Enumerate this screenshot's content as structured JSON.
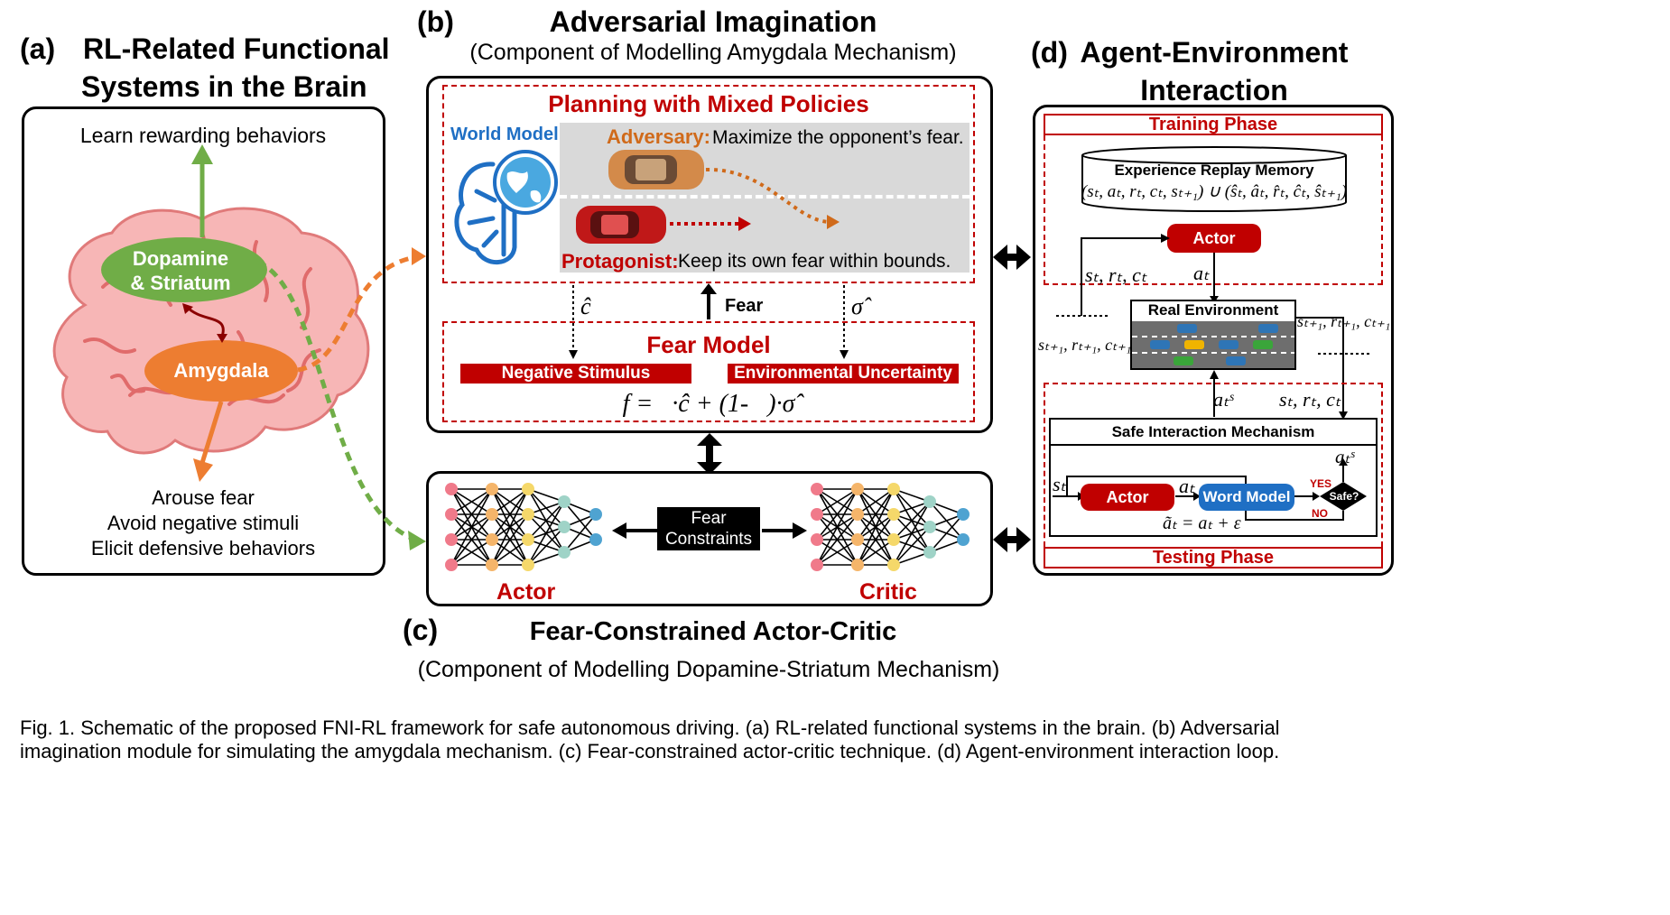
{
  "panel_a": {
    "label": "(a)",
    "title_line1": "RL-Related Functional",
    "title_line2": "Systems in the Brain",
    "learn": "Learn rewarding behaviors",
    "dopamine_line1": "Dopamine",
    "dopamine_line2": "& Striatum",
    "amygdala": "Amygdala",
    "arouse_1": "Arouse fear",
    "arouse_2": "Avoid negative stimuli",
    "arouse_3": "Elicit defensive behaviors"
  },
  "panel_b": {
    "label": "(b)",
    "title": "Adversarial Imagination",
    "subtitle": "(Component of Modelling Amygdala Mechanism)",
    "planning": "Planning with Mixed Policies",
    "world_model": "World Model",
    "adversary_label": "Adversary:",
    "adversary_text": "Maximize the opponent’s fear.",
    "protagonist_label": "Protagonist:",
    "protagonist_text": "Keep its own fear within bounds.",
    "c_hat": "ĉ",
    "fear": "Fear",
    "sigma_hat": "σ̂",
    "fear_model": "Fear Model",
    "negative_stimulus": "Negative Stimulus",
    "environmental_uncertainty": "Environmental Uncertainty",
    "formula": "f =   ·ĉ + (1-   )·σ̂"
  },
  "panel_c": {
    "label": "(c)",
    "title": "Fear-Constrained Actor-Critic",
    "subtitle": "(Component of Modelling Dopamine-Striatum Mechanism)",
    "fear_constraints_1": "Fear",
    "fear_constraints_2": "Constraints",
    "actor": "Actor",
    "critic": "Critic"
  },
  "panel_d": {
    "label": "(d)",
    "title_line1": "Agent-Environment",
    "title_line2": "Interaction",
    "training_phase": "Training Phase",
    "testing_phase": "Testing Phase",
    "replay_memory": "Experience Replay Memory",
    "replay_formula": "(sₜ, aₜ, rₜ, cₜ, sₜ₊₁) ∪ (ŝₜ, âₜ, r̂ₜ, ĉₜ, ŝₜ₊₁)",
    "actor": "Actor",
    "src_label": "sₜ, rₜ, cₜ",
    "a_label": "aₜ",
    "real_env": "Real Environment",
    "next_left": "sₜ₊₁, rₜ₊₁, cₜ₊₁",
    "next_right": "sₜ₊₁, rₜ₊₁, cₜ₊₁",
    "a_s": "aₜˢ",
    "src_label2": "sₜ, rₜ, cₜ",
    "safe_mech": "Safe Interaction Mechanism",
    "s_t": "sₜ",
    "actor2": "Actor",
    "a_t2": "aₜ",
    "word_model": "Word Model",
    "safe_q": "Safe?",
    "yes": "YES",
    "no": "NO",
    "a_s_out": "aₜˢ",
    "noise": "ãₜ = aₜ + ε"
  },
  "caption_line1": "Fig. 1. Schematic of the proposed FNI-RL framework for safe autonomous driving. (a) RL-related functional systems in the brain. (b) Adversarial",
  "caption_line2": "imagination module for simulating the amygdala mechanism. (c) Fear-constrained actor-critic technique. (d) Agent-environment interaction loop.",
  "colors": {
    "accent_red": "#c00000",
    "green": "#70ad47",
    "orange": "#ed7d31",
    "blue": "#1f6fc4",
    "brain_pink": "#f4a6a6"
  }
}
